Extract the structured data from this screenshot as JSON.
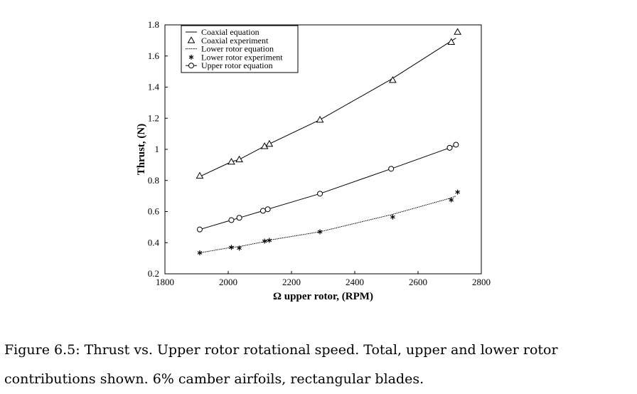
{
  "chart_data": {
    "type": "line",
    "xlabel": "Ω upper rotor, (RPM)",
    "ylabel": "Thrust, (N)",
    "xlim": [
      1800,
      2800
    ],
    "ylim": [
      0.2,
      1.8
    ],
    "xticks": [
      "1800",
      "2000",
      "2200",
      "2400",
      "2600",
      "2800"
    ],
    "yticks": [
      "0.2",
      "0.4",
      "0.6",
      "0.8",
      "1",
      "1.2",
      "1.4",
      "1.6",
      "1.8"
    ],
    "legend_position": "top-left",
    "series": [
      {
        "name": "Coaxial equation",
        "style": "solid-line",
        "x": [
          1910,
          2010,
          2035,
          2110,
          2125,
          2290,
          2515,
          2700,
          2720
        ],
        "y": [
          0.825,
          0.92,
          0.935,
          1.015,
          1.03,
          1.19,
          1.45,
          1.69,
          1.715
        ]
      },
      {
        "name": "Coaxial experiment",
        "style": "triangle-marker",
        "x": [
          1910,
          2010,
          2035,
          2115,
          2130,
          2290,
          2520,
          2705,
          2725
        ],
        "y": [
          0.83,
          0.92,
          0.935,
          1.02,
          1.035,
          1.19,
          1.445,
          1.69,
          1.755
        ]
      },
      {
        "name": "Lower rotor equation",
        "style": "dotted-line",
        "x": [
          1910,
          2010,
          2035,
          2110,
          2125,
          2290,
          2515,
          2700,
          2720
        ],
        "y": [
          0.335,
          0.37,
          0.375,
          0.405,
          0.415,
          0.47,
          0.58,
          0.685,
          0.7
        ]
      },
      {
        "name": "Lower rotor experiment",
        "style": "star-marker",
        "x": [
          1910,
          2010,
          2035,
          2115,
          2130,
          2290,
          2520,
          2705,
          2725
        ],
        "y": [
          0.335,
          0.37,
          0.365,
          0.41,
          0.415,
          0.47,
          0.565,
          0.675,
          0.725
        ]
      },
      {
        "name": "Upper rotor equation",
        "style": "line-circle-marker",
        "x": [
          1910,
          2010,
          2035,
          2110,
          2125,
          2290,
          2515,
          2700,
          2720
        ],
        "y": [
          0.485,
          0.545,
          0.56,
          0.605,
          0.615,
          0.715,
          0.875,
          1.01,
          1.03
        ]
      }
    ]
  },
  "caption": {
    "line1": "Figure 6.5: Thrust vs. Upper rotor rotational speed. Total, upper and lower rotor",
    "line2": "contributions shown. 6% camber airfoils, rectangular blades."
  }
}
